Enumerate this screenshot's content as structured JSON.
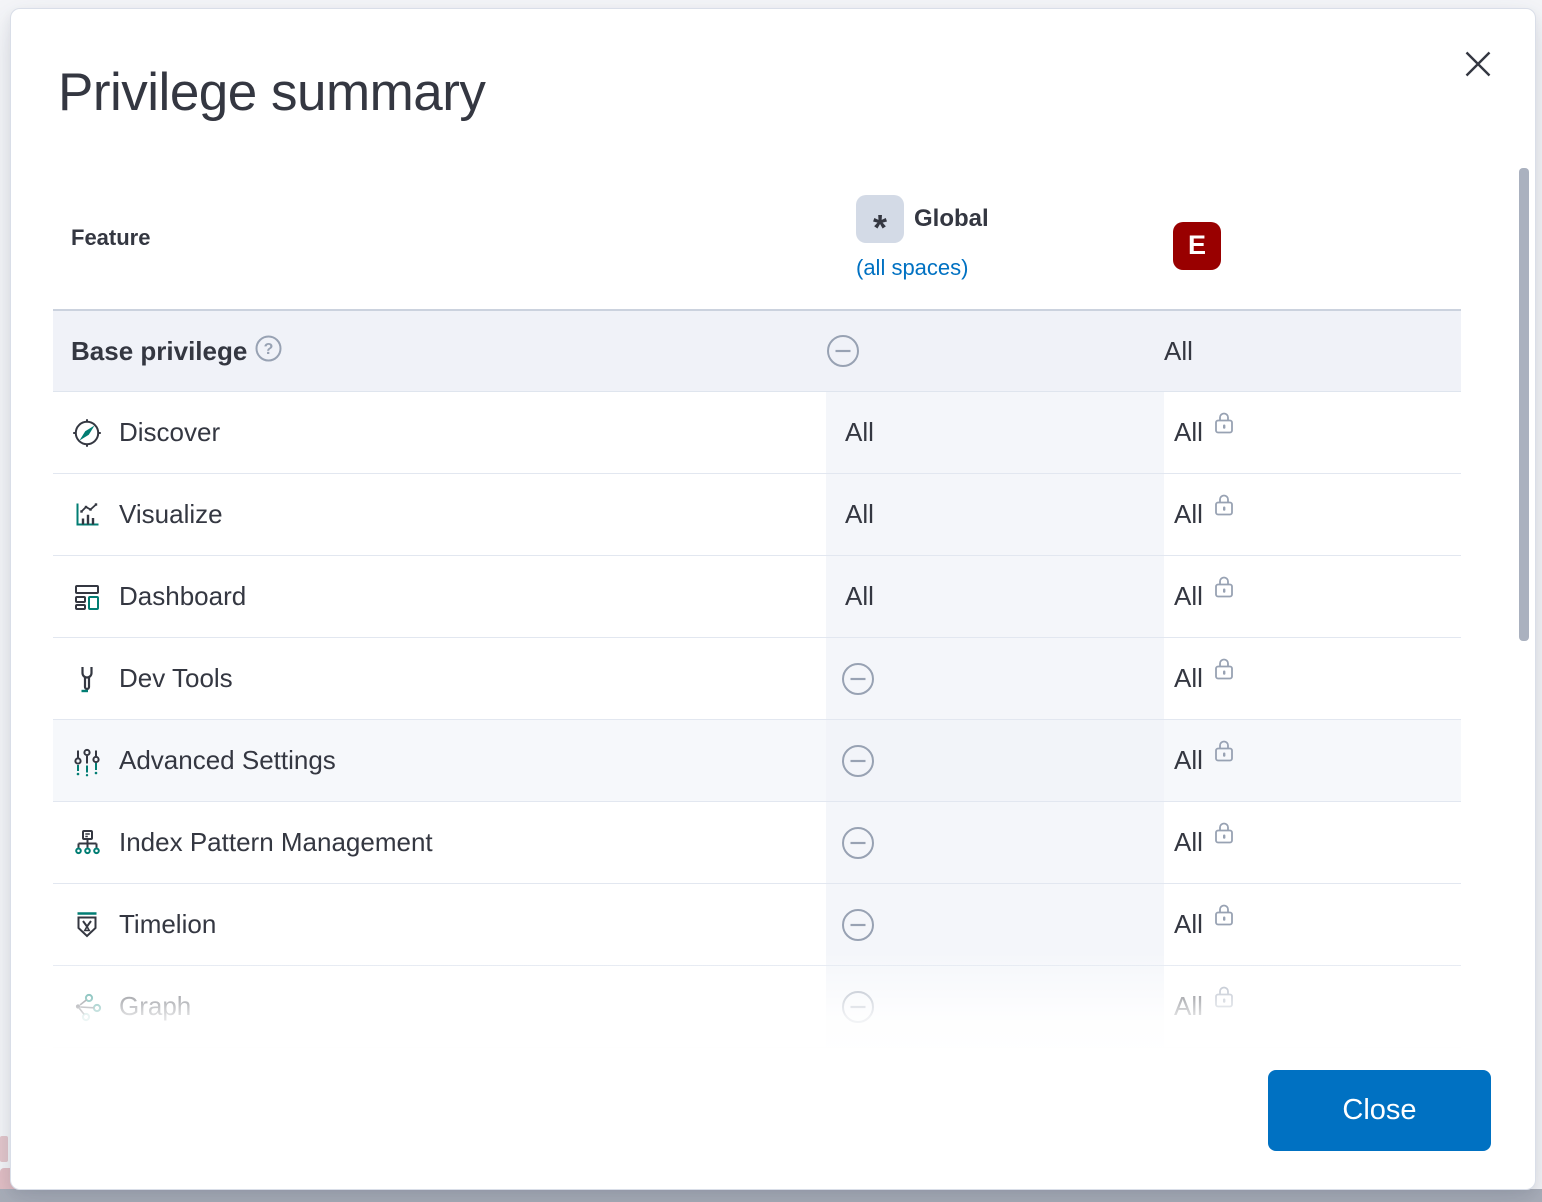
{
  "modal": {
    "title": "Privilege summary",
    "close_label": "Close"
  },
  "table": {
    "feature_column_header": "Feature",
    "global_column": {
      "badge": "*",
      "title": "Global",
      "subtitle": "(all spaces)"
    },
    "space_column": {
      "badge": "E"
    },
    "base_row": {
      "label": "Base privilege",
      "global_value": "none",
      "space_value": "All"
    },
    "rows": [
      {
        "label": "Discover",
        "icon": "discover-icon",
        "global_value": "All",
        "space_value": "All",
        "space_locked": true
      },
      {
        "label": "Visualize",
        "icon": "visualize-icon",
        "global_value": "All",
        "space_value": "All",
        "space_locked": true
      },
      {
        "label": "Dashboard",
        "icon": "dashboard-icon",
        "global_value": "All",
        "space_value": "All",
        "space_locked": true
      },
      {
        "label": "Dev Tools",
        "icon": "dev-tools-icon",
        "global_value": "none",
        "space_value": "All",
        "space_locked": true
      },
      {
        "label": "Advanced Settings",
        "icon": "advanced-settings-icon",
        "global_value": "none",
        "space_value": "All",
        "space_locked": true,
        "highlighted": true
      },
      {
        "label": "Index Pattern Management",
        "icon": "index-pattern-icon",
        "global_value": "none",
        "space_value": "All",
        "space_locked": true
      },
      {
        "label": "Timelion",
        "icon": "timelion-icon",
        "global_value": "none",
        "space_value": "All",
        "space_locked": true
      },
      {
        "label": "Graph",
        "icon": "graph-icon",
        "global_value": "none",
        "space_value": "All",
        "space_locked": true
      }
    ]
  },
  "colors": {
    "accent_teal": "#017D73",
    "text_dark": "#343741",
    "muted_icon_gray": "#98A2B3",
    "link_blue": "#0071C2",
    "button_blue": "#0071C2",
    "space_badge_red": "#990000",
    "global_badge_gray": "#D3DAE6"
  }
}
